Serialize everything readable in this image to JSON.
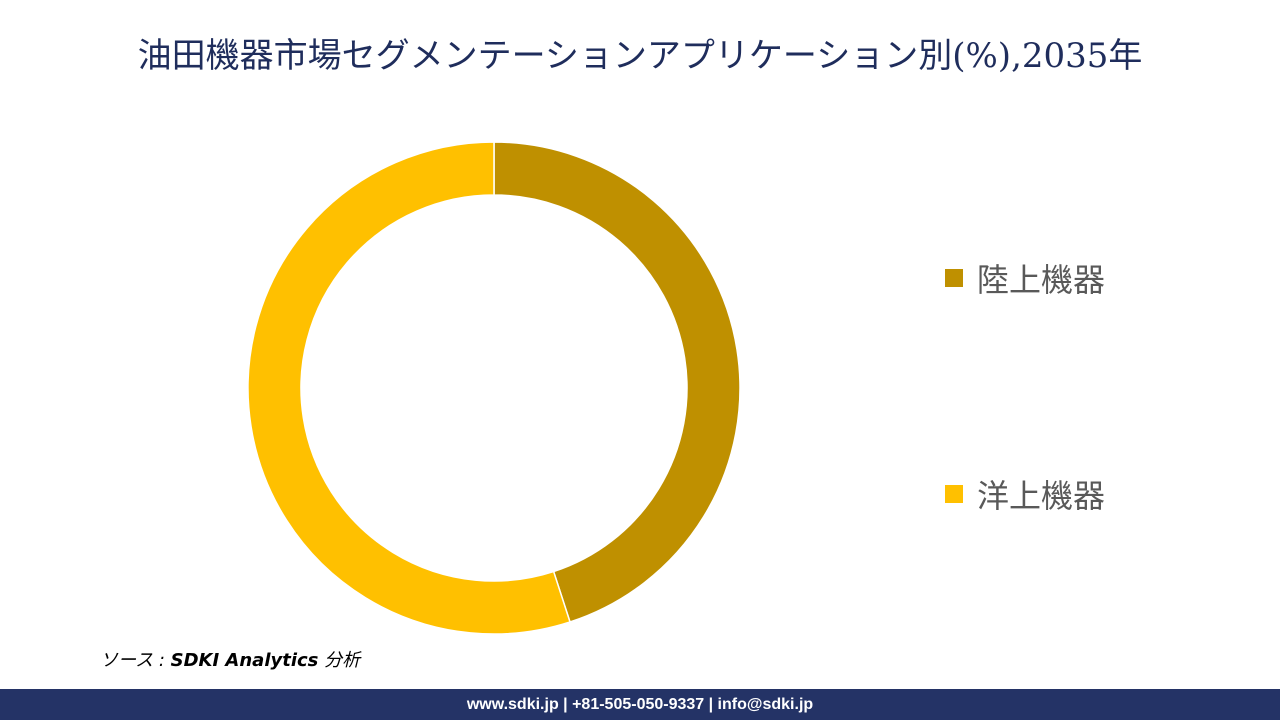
{
  "title": "油田機器市場セグメンテーションアプリケーション別(%),2035年",
  "chart_data": {
    "type": "donut",
    "title": "油田機器市場セグメンテーションアプリケーション別(%),2035年",
    "categories": [
      "陸上機器",
      "洋上機器"
    ],
    "values": [
      45,
      55
    ],
    "colors": [
      "#bf9000",
      "#ffc000"
    ],
    "legend_position": "right",
    "grid": false
  },
  "legend": {
    "items": [
      {
        "label": "陸上機器",
        "color": "#bf9000"
      },
      {
        "label": "洋上機器",
        "color": "#ffc000"
      }
    ]
  },
  "source": {
    "prefix": "ソース : ",
    "brand": "SDKI Analytics",
    "suffix": " 分析"
  },
  "footer": {
    "text": "www.sdki.jp | +81-505-050-9337 | info@sdki.jp",
    "background": "#243366"
  }
}
